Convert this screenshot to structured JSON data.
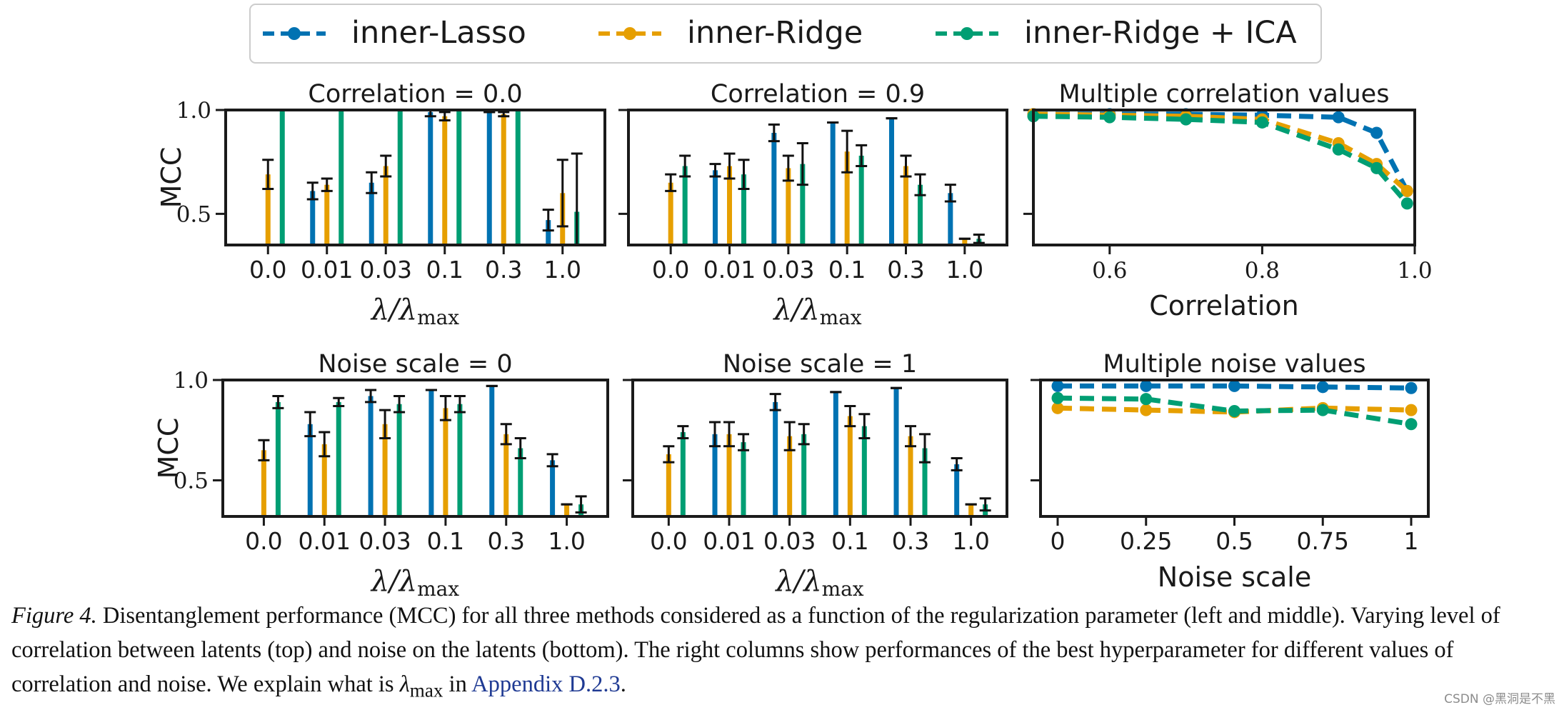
{
  "legend": {
    "entries": [
      {
        "label": "inner-Lasso",
        "color": "#0072B2"
      },
      {
        "label": "inner-Ridge",
        "color": "#E69F00"
      },
      {
        "label": "inner-Ridge + ICA",
        "color": "#009E73"
      }
    ]
  },
  "caption": {
    "label": "Figure 4.",
    "body": " Disentanglement performance (MCC) for all three methods considered as a function of the regularization parameter (left and middle). Varying level of correlation between latents (top) and noise on the latents (bottom). The right columns show performances of the best hyperparameter for different values of correlation and noise. We explain what is ",
    "lambda_sym": "λ",
    "lambda_sub": "max",
    "in_text": " in ",
    "link": "Appendix D.2.3",
    "end": "."
  },
  "watermark": "CSDN @黑洞是不黑",
  "chart_data": [
    {
      "id": "corr0",
      "type": "bar",
      "title": "Correlation = 0.0",
      "xlabel": "λ/λmax",
      "ylabel": "MCC",
      "categories": [
        "0.0",
        "0.01",
        "0.03",
        "0.1",
        "0.3",
        "1.0"
      ],
      "ylim": [
        0.35,
        1.0
      ],
      "yticks": [
        "0.5",
        "1.0"
      ],
      "series": [
        {
          "name": "inner-Lasso",
          "values": [
            null,
            0.61,
            0.65,
            0.99,
            0.99,
            0.47
          ],
          "errors": [
            null,
            0.04,
            0.05,
            0.02,
            0.0,
            0.05
          ]
        },
        {
          "name": "inner-Ridge",
          "values": [
            0.69,
            0.64,
            0.73,
            0.97,
            0.98,
            0.6
          ],
          "errors": [
            0.07,
            0.03,
            0.05,
            0.02,
            0.01,
            0.16
          ]
        },
        {
          "name": "inner-Ridge + ICA",
          "values": [
            1.0,
            1.0,
            1.0,
            1.0,
            1.0,
            0.51
          ],
          "errors": [
            0.0,
            0.0,
            0.0,
            0.0,
            0.0,
            0.28
          ]
        }
      ]
    },
    {
      "id": "corr09",
      "type": "bar",
      "title": "Correlation = 0.9",
      "xlabel": "λ/λmax",
      "ylabel": "",
      "categories": [
        "0.0",
        "0.01",
        "0.03",
        "0.1",
        "0.3",
        "1.0"
      ],
      "ylim": [
        0.35,
        1.0
      ],
      "yticks": [],
      "series": [
        {
          "name": "inner-Lasso",
          "values": [
            null,
            0.71,
            0.89,
            0.94,
            0.96,
            0.6
          ],
          "errors": [
            null,
            0.03,
            0.04,
            0.0,
            0.0,
            0.04
          ]
        },
        {
          "name": "inner-Ridge",
          "values": [
            0.65,
            0.73,
            0.72,
            0.8,
            0.73,
            0.38
          ],
          "errors": [
            0.04,
            0.06,
            0.06,
            0.1,
            0.05,
            0.0
          ]
        },
        {
          "name": "inner-Ridge + ICA",
          "values": [
            0.73,
            0.69,
            0.74,
            0.78,
            0.64,
            0.38
          ],
          "errors": [
            0.05,
            0.07,
            0.1,
            0.05,
            0.05,
            0.02
          ]
        }
      ]
    },
    {
      "id": "multi-corr",
      "type": "line",
      "title": "Multiple correlation values",
      "xlabel": "Correlation",
      "ylabel": "",
      "xlim": [
        0.5,
        1.0
      ],
      "ylim": [
        0.35,
        1.0
      ],
      "xticks": [
        "0.6",
        "0.8",
        "1.0"
      ],
      "x": [
        0.5,
        0.6,
        0.7,
        0.8,
        0.9,
        0.95,
        0.99
      ],
      "series": [
        {
          "name": "inner-Lasso",
          "values": [
            0.98,
            0.98,
            0.98,
            0.975,
            0.965,
            0.89,
            0.61
          ]
        },
        {
          "name": "inner-Ridge",
          "values": [
            0.98,
            0.975,
            0.97,
            0.955,
            0.84,
            0.74,
            0.61
          ]
        },
        {
          "name": "inner-Ridge + ICA",
          "values": [
            0.97,
            0.965,
            0.955,
            0.94,
            0.81,
            0.72,
            0.55
          ]
        }
      ]
    },
    {
      "id": "noise0",
      "type": "bar",
      "title": "Noise scale = 0",
      "xlabel": "λ/λmax",
      "ylabel": "MCC",
      "categories": [
        "0.0",
        "0.01",
        "0.03",
        "0.1",
        "0.3",
        "1.0"
      ],
      "ylim": [
        0.32,
        1.0
      ],
      "yticks": [
        "0.5",
        "1.0"
      ],
      "series": [
        {
          "name": "inner-Lasso",
          "values": [
            null,
            0.78,
            0.92,
            0.95,
            0.97,
            0.6
          ],
          "errors": [
            null,
            0.06,
            0.03,
            0.0,
            0.0,
            0.03
          ]
        },
        {
          "name": "inner-Ridge",
          "values": [
            0.65,
            0.68,
            0.78,
            0.86,
            0.73,
            0.38
          ],
          "errors": [
            0.05,
            0.06,
            0.07,
            0.06,
            0.05,
            0.0
          ]
        },
        {
          "name": "inner-Ridge + ICA",
          "values": [
            0.89,
            0.89,
            0.88,
            0.88,
            0.66,
            0.38
          ],
          "errors": [
            0.03,
            0.02,
            0.04,
            0.04,
            0.05,
            0.04
          ]
        }
      ]
    },
    {
      "id": "noise1",
      "type": "bar",
      "title": "Noise scale = 1",
      "xlabel": "λ/λmax",
      "ylabel": "",
      "categories": [
        "0.0",
        "0.01",
        "0.03",
        "0.1",
        "0.3",
        "1.0"
      ],
      "ylim": [
        0.32,
        1.0
      ],
      "yticks": [],
      "series": [
        {
          "name": "inner-Lasso",
          "values": [
            null,
            0.73,
            0.89,
            0.94,
            0.96,
            0.58
          ],
          "errors": [
            null,
            0.06,
            0.04,
            0.0,
            0.0,
            0.03
          ]
        },
        {
          "name": "inner-Ridge",
          "values": [
            0.63,
            0.73,
            0.72,
            0.82,
            0.72,
            0.38
          ],
          "errors": [
            0.04,
            0.06,
            0.07,
            0.05,
            0.05,
            0.0
          ]
        },
        {
          "name": "inner-Ridge + ICA",
          "values": [
            0.74,
            0.69,
            0.73,
            0.77,
            0.66,
            0.38
          ],
          "errors": [
            0.03,
            0.04,
            0.05,
            0.06,
            0.07,
            0.03
          ]
        }
      ]
    },
    {
      "id": "multi-noise",
      "type": "line",
      "title": "Multiple noise values",
      "xlabel": "Noise scale",
      "ylabel": "",
      "xlim": [
        0,
        1
      ],
      "ylim": [
        0.32,
        1.0
      ],
      "xticks": [
        "0",
        "0.25",
        "0.5",
        "0.75",
        "1"
      ],
      "x": [
        0,
        0.25,
        0.5,
        0.75,
        1
      ],
      "series": [
        {
          "name": "inner-Lasso",
          "values": [
            0.97,
            0.97,
            0.97,
            0.965,
            0.96
          ]
        },
        {
          "name": "inner-Ridge",
          "values": [
            0.86,
            0.85,
            0.84,
            0.86,
            0.85
          ]
        },
        {
          "name": "inner-Ridge + ICA",
          "values": [
            0.91,
            0.905,
            0.845,
            0.85,
            0.78
          ]
        }
      ]
    }
  ]
}
